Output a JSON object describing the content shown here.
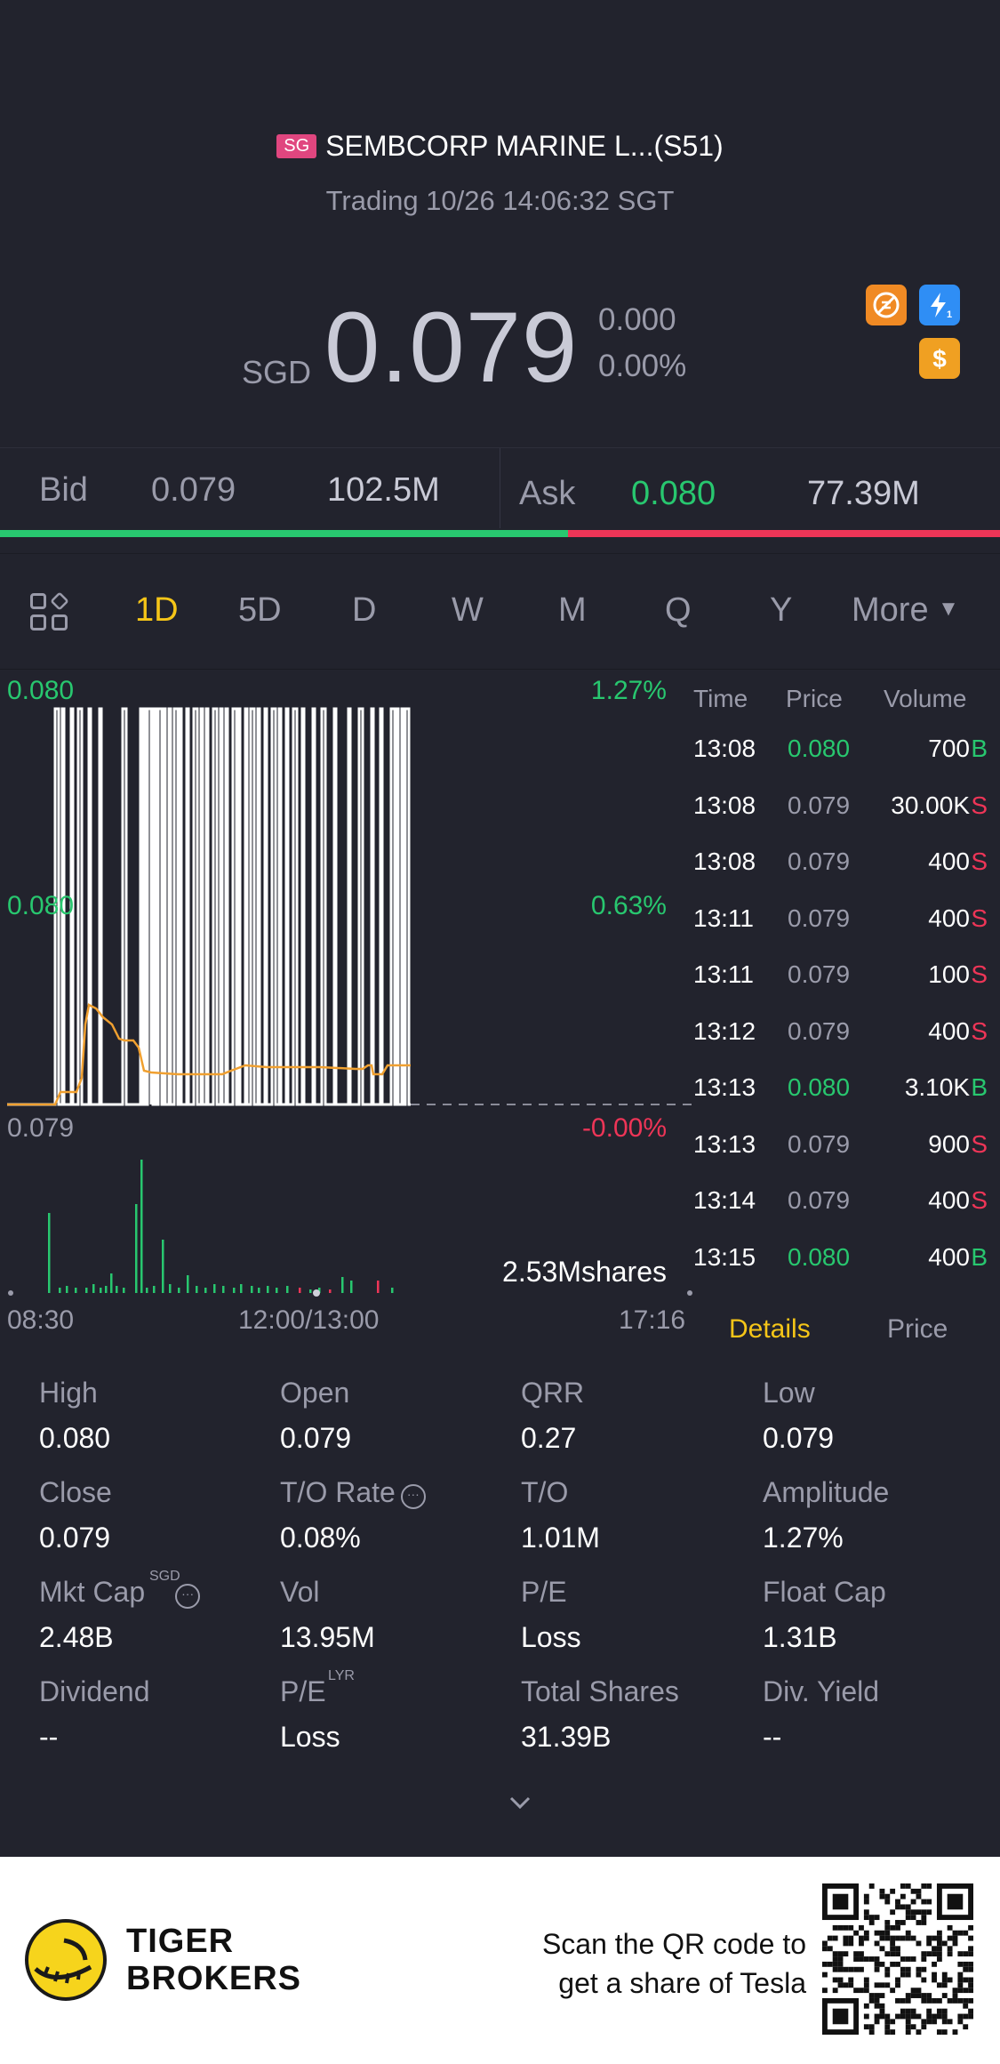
{
  "header": {
    "market_badge": "SG",
    "title": "SEMBCORP MARINE L...(S51)",
    "subtitle": "Trading 10/26 14:06:32 SGT"
  },
  "quote": {
    "currency": "SGD",
    "price": "0.079",
    "change": "0.000",
    "change_pct": "0.00%",
    "icons": [
      "no-short-sell-icon",
      "flash-level1-icon",
      "dollar-icon"
    ]
  },
  "bidask": {
    "bid_label": "Bid",
    "bid_price": "0.079",
    "bid_volume": "102.5M",
    "ask_label": "Ask",
    "ask_price": "0.080",
    "ask_volume": "77.39M",
    "bid_ratio": 0.568,
    "colors": {
      "bid": "#28c76f",
      "ask": "#ee3557"
    }
  },
  "tabs": {
    "items": [
      "1D",
      "5D",
      "D",
      "W",
      "M",
      "Q",
      "Y",
      "More"
    ],
    "active": "1D"
  },
  "chart_data": {
    "type": "line",
    "y_top_label": "0.080",
    "y_mid_label": "0.080",
    "y_bottom_label": "0.079",
    "pct_top": "1.27%",
    "pct_mid": "0.63%",
    "pct_bottom": "-0.00%",
    "volume_label": "2.53Mshares",
    "x_labels": [
      "08:30",
      "12:00/13:00",
      "17:16"
    ],
    "ylim": [
      0.079,
      0.08
    ],
    "colors": {
      "price": "#ffffff",
      "avg": "#f0a030",
      "volume_up": "#28c76f",
      "volume_down": "#ee3557",
      "prev_close": "#8a8b98"
    }
  },
  "trades": {
    "headers": {
      "time": "Time",
      "price": "Price",
      "volume": "Volume"
    },
    "rows": [
      {
        "time": "13:08",
        "price": "0.080",
        "volume": "700",
        "side": "B"
      },
      {
        "time": "13:08",
        "price": "0.079",
        "volume": "30.00K",
        "side": "S"
      },
      {
        "time": "13:08",
        "price": "0.079",
        "volume": "400",
        "side": "S"
      },
      {
        "time": "13:11",
        "price": "0.079",
        "volume": "400",
        "side": "S"
      },
      {
        "time": "13:11",
        "price": "0.079",
        "volume": "100",
        "side": "S"
      },
      {
        "time": "13:12",
        "price": "0.079",
        "volume": "400",
        "side": "S"
      },
      {
        "time": "13:13",
        "price": "0.080",
        "volume": "3.10K",
        "side": "B"
      },
      {
        "time": "13:13",
        "price": "0.079",
        "volume": "900",
        "side": "S"
      },
      {
        "time": "13:14",
        "price": "0.079",
        "volume": "400",
        "side": "S"
      },
      {
        "time": "13:15",
        "price": "0.080",
        "volume": "400",
        "side": "B"
      }
    ],
    "tab_details": "Details",
    "tab_price": "Price"
  },
  "stats": [
    {
      "label": "High",
      "value": "0.080"
    },
    {
      "label": "Open",
      "value": "0.079"
    },
    {
      "label": "QRR",
      "value": "0.27"
    },
    {
      "label": "Low",
      "value": "0.079"
    },
    {
      "label": "Close",
      "value": "0.079"
    },
    {
      "label": "T/O Rate",
      "value": "0.08%"
    },
    {
      "label": "T/O",
      "value": "1.01M"
    },
    {
      "label": "Amplitude",
      "value": "1.27%"
    },
    {
      "label": "Mkt Cap",
      "value": "2.48B",
      "sup": "SGD"
    },
    {
      "label": "Vol",
      "value": "13.95M"
    },
    {
      "label": "P/E",
      "value": "Loss"
    },
    {
      "label": "Float Cap",
      "value": "1.31B"
    },
    {
      "label": "Dividend",
      "value": "--"
    },
    {
      "label": "P/E",
      "value": "Loss",
      "sup": "LYR"
    },
    {
      "label": "Total Shares",
      "value": "31.39B"
    },
    {
      "label": "Div. Yield",
      "value": "--"
    }
  ],
  "footer": {
    "brand_line1": "TIGER",
    "brand_line2": "BROKERS",
    "scan_line1": "Scan the QR code to",
    "scan_line2": "get a share of Tesla"
  }
}
